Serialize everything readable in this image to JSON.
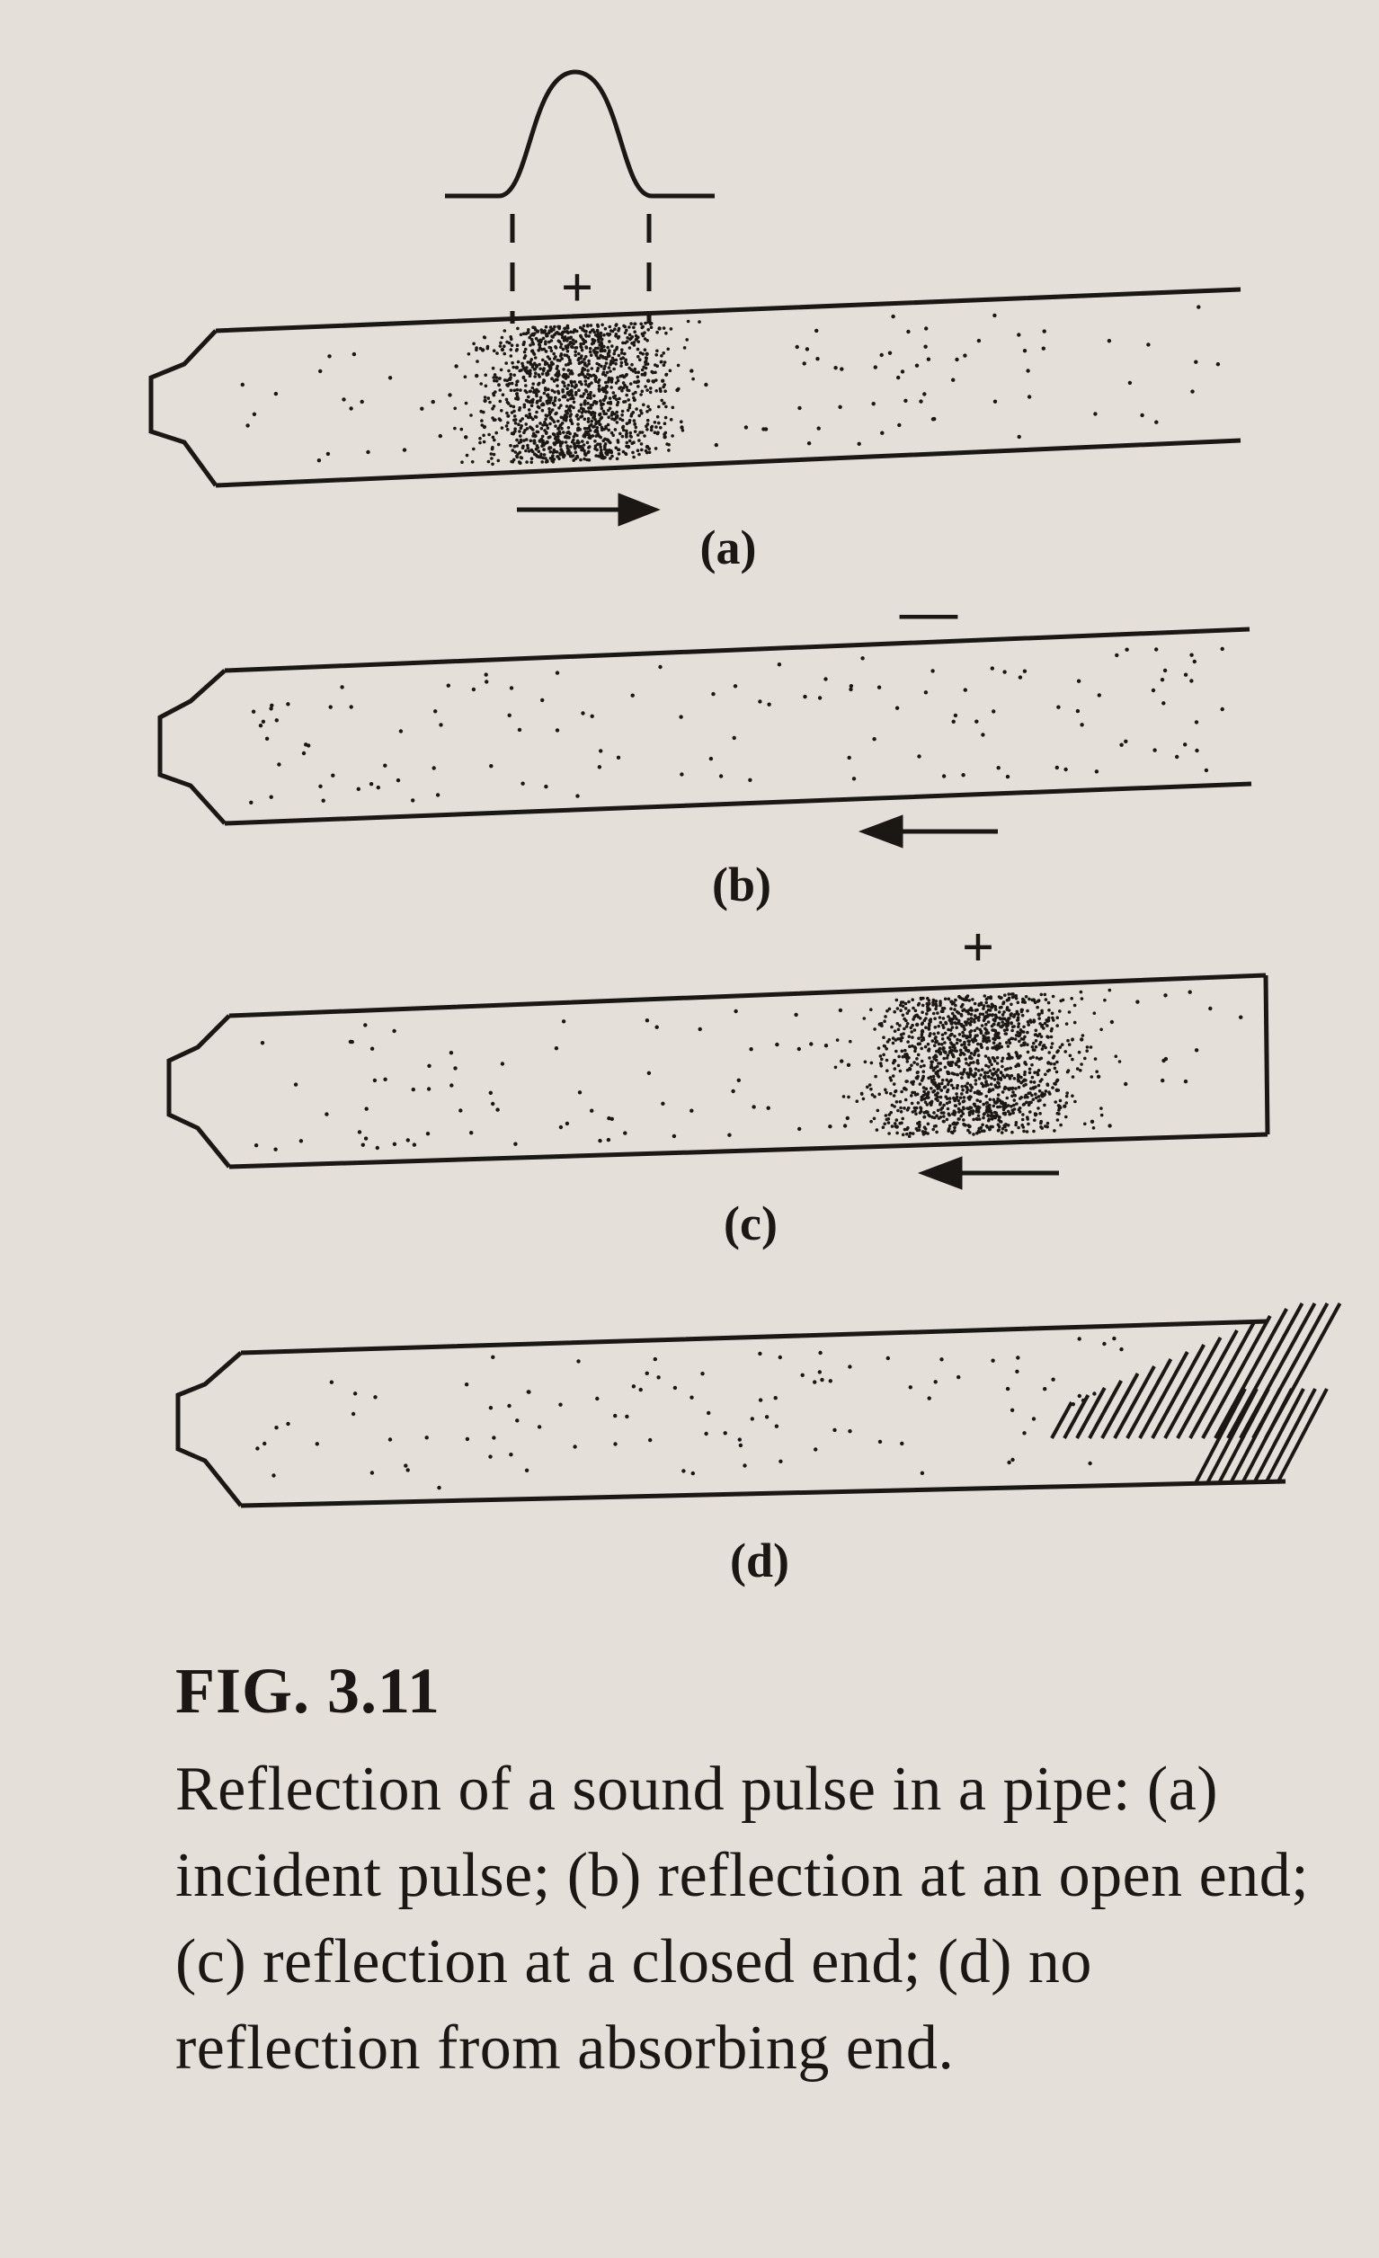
{
  "panels": [
    {
      "id": "a",
      "label": "(a)",
      "sign": "+",
      "arrow": "right"
    },
    {
      "id": "b",
      "label": "(b)",
      "sign": "—",
      "arrow": "left"
    },
    {
      "id": "c",
      "label": "(c)",
      "sign": "+",
      "arrow": "left"
    },
    {
      "id": "d",
      "label": "(d)",
      "sign": "",
      "arrow": ""
    }
  ],
  "caption": {
    "title": "FIG. 3.11",
    "text": "Reflection of a sound pulse in a pipe: (a) incident pulse; (b) reflection at an open end; (c) reflection at a closed end; (d) no reflection from absorbing end."
  }
}
